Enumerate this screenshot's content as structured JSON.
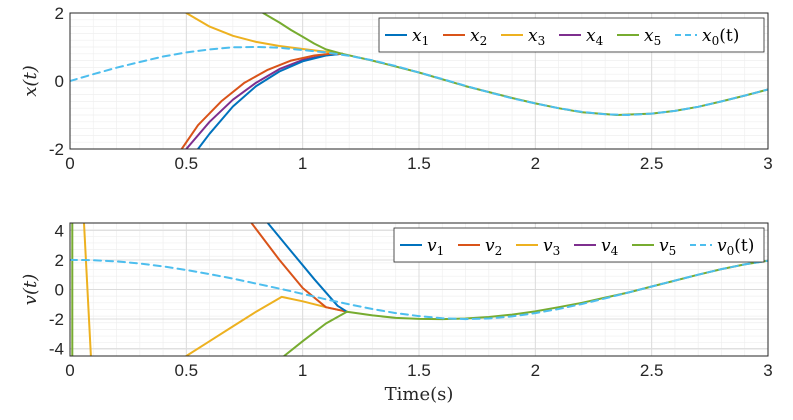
{
  "colors": {
    "s1": "#0072BD",
    "s2": "#D95319",
    "s3": "#EDB120",
    "s4": "#7E2F8E",
    "s5": "#77AC30",
    "ref": "#4DBEEE",
    "grid_major": "#dcdcdc",
    "grid_minor": "#efefef",
    "axis": "#262626"
  },
  "chart_data": [
    {
      "type": "line",
      "title": "",
      "xlabel": "",
      "ylabel": "x(t)",
      "xlim": [
        0,
        3
      ],
      "ylim": [
        -2,
        2
      ],
      "xticks": [
        "0",
        "0.5",
        "1",
        "1.5",
        "2",
        "2.5",
        "3"
      ],
      "yticks": [
        "-2",
        "0",
        "2"
      ],
      "grid": true,
      "legend_position": "top-right",
      "legend": [
        {
          "base": "x",
          "sub": "1",
          "suffix": ""
        },
        {
          "base": "x",
          "sub": "2",
          "suffix": ""
        },
        {
          "base": "x",
          "sub": "3",
          "suffix": ""
        },
        {
          "base": "x",
          "sub": "4",
          "suffix": ""
        },
        {
          "base": "x",
          "sub": "5",
          "suffix": ""
        },
        {
          "base": "x",
          "sub": "0",
          "suffix": "(t)"
        }
      ],
      "series": [
        {
          "color_key": "s4",
          "dash": false,
          "x": [
            0.5,
            0.6,
            0.7,
            0.8,
            0.9,
            1.0,
            1.1,
            1.17
          ],
          "y": [
            -2.0,
            -1.2,
            -0.55,
            -0.05,
            0.35,
            0.62,
            0.76,
            0.8
          ]
        },
        {
          "color_key": "s1",
          "dash": false,
          "x": [
            0.55,
            0.6,
            0.7,
            0.8,
            0.9,
            1.0,
            1.1,
            1.17
          ],
          "y": [
            -2.0,
            -1.55,
            -0.75,
            -0.15,
            0.28,
            0.58,
            0.75,
            0.8
          ]
        },
        {
          "color_key": "s2",
          "dash": false,
          "x": [
            0.48,
            0.55,
            0.65,
            0.75,
            0.85,
            0.95,
            1.05,
            1.12,
            1.17
          ],
          "y": [
            -2.0,
            -1.3,
            -0.6,
            -0.05,
            0.33,
            0.6,
            0.75,
            0.8,
            0.8
          ]
        },
        {
          "color_key": "s3",
          "dash": false,
          "x": [
            0.5,
            0.6,
            0.7,
            0.8,
            0.9,
            1.0,
            1.1,
            1.17
          ],
          "y": [
            2.0,
            1.6,
            1.33,
            1.15,
            1.03,
            0.94,
            0.86,
            0.8
          ]
        },
        {
          "color_key": "s5",
          "dash": false,
          "x": [
            0.83,
            0.9,
            0.95,
            1.0,
            1.05,
            1.1,
            1.17
          ],
          "y": [
            2.0,
            1.72,
            1.5,
            1.3,
            1.1,
            0.93,
            0.8
          ]
        },
        {
          "color_key": "s5",
          "dash": false,
          "x": [
            1.17,
            1.3,
            1.5,
            1.7,
            1.9,
            2.0,
            2.1,
            2.2,
            2.35,
            2.5,
            2.6,
            2.7,
            2.8,
            2.9,
            3.0
          ],
          "y": [
            0.8,
            0.6,
            0.25,
            -0.15,
            -0.5,
            -0.66,
            -0.8,
            -0.92,
            -1.0,
            -0.96,
            -0.88,
            -0.76,
            -0.6,
            -0.43,
            -0.25
          ]
        },
        {
          "color_key": "ref",
          "dash": true,
          "x": [
            0.0,
            0.1,
            0.2,
            0.3,
            0.4,
            0.5,
            0.6,
            0.7,
            0.8,
            0.9,
            1.0,
            1.1,
            1.2,
            1.3,
            1.4,
            1.5,
            1.6,
            1.7,
            1.8,
            1.9,
            2.0,
            2.1,
            2.2,
            2.3,
            2.4,
            2.5,
            2.6,
            2.7,
            2.8,
            2.9,
            3.0
          ],
          "y": [
            0.0,
            0.2,
            0.39,
            0.56,
            0.72,
            0.84,
            0.93,
            0.99,
            1.0,
            0.98,
            0.91,
            0.84,
            0.74,
            0.61,
            0.44,
            0.25,
            0.06,
            -0.14,
            -0.33,
            -0.51,
            -0.66,
            -0.8,
            -0.91,
            -0.98,
            -1.0,
            -0.96,
            -0.88,
            -0.76,
            -0.6,
            -0.43,
            -0.25
          ]
        }
      ]
    },
    {
      "type": "line",
      "title": "",
      "xlabel": "Time(s)",
      "ylabel": "v(t)",
      "xlim": [
        0,
        3
      ],
      "ylim": [
        -4.5,
        4.5
      ],
      "xticks": [
        "0",
        "0.5",
        "1",
        "1.5",
        "2",
        "2.5",
        "3"
      ],
      "yticks": [
        "-4",
        "-2",
        "0",
        "2",
        "4"
      ],
      "grid": true,
      "legend_position": "top-right",
      "legend": [
        {
          "base": "v",
          "sub": "1",
          "suffix": ""
        },
        {
          "base": "v",
          "sub": "2",
          "suffix": ""
        },
        {
          "base": "v",
          "sub": "3",
          "suffix": ""
        },
        {
          "base": "v",
          "sub": "4",
          "suffix": ""
        },
        {
          "base": "v",
          "sub": "5",
          "suffix": ""
        },
        {
          "base": "v",
          "sub": "0",
          "suffix": "(t)"
        }
      ],
      "series": [
        {
          "color_key": "s5",
          "dash": false,
          "x": [
            0.01,
            0.01
          ],
          "y": [
            4.5,
            -4.5
          ]
        },
        {
          "color_key": "s3",
          "dash": false,
          "x": [
            0.06,
            0.09
          ],
          "y": [
            4.5,
            -4.5
          ]
        },
        {
          "color_key": "s3",
          "dash": false,
          "x": [
            0.5,
            0.6,
            0.7,
            0.8,
            0.91,
            1.0,
            1.1,
            1.19
          ],
          "y": [
            -4.5,
            -3.5,
            -2.5,
            -1.5,
            -0.5,
            -0.8,
            -1.2,
            -1.5
          ]
        },
        {
          "color_key": "s2",
          "dash": false,
          "x": [
            0.78,
            0.9,
            1.0,
            1.1,
            1.19
          ],
          "y": [
            4.5,
            2.0,
            0.1,
            -1.2,
            -1.5
          ]
        },
        {
          "color_key": "s1",
          "dash": false,
          "x": [
            0.85,
            0.95,
            1.05,
            1.15,
            1.19
          ],
          "y": [
            4.5,
            2.6,
            0.7,
            -1.1,
            -1.5
          ]
        },
        {
          "color_key": "s5",
          "dash": false,
          "x": [
            0.92,
            1.0,
            1.1,
            1.19
          ],
          "y": [
            -4.5,
            -3.5,
            -2.3,
            -1.5
          ]
        },
        {
          "color_key": "s5",
          "dash": false,
          "x": [
            1.19,
            1.3,
            1.4,
            1.5,
            1.6,
            1.7,
            1.8,
            1.9,
            2.0,
            2.1,
            2.2,
            2.3,
            2.4,
            2.5,
            2.6,
            2.7,
            2.8,
            2.9,
            3.0
          ],
          "y": [
            -1.5,
            -1.75,
            -1.92,
            -1.99,
            -2.0,
            -1.96,
            -1.86,
            -1.7,
            -1.48,
            -1.2,
            -0.9,
            -0.55,
            -0.2,
            0.2,
            0.6,
            1.0,
            1.38,
            1.7,
            1.95
          ]
        },
        {
          "color_key": "ref",
          "dash": true,
          "x": [
            0.0,
            0.1,
            0.2,
            0.3,
            0.4,
            0.5,
            0.6,
            0.7,
            0.8,
            0.9,
            1.0,
            1.1,
            1.2,
            1.3,
            1.4,
            1.5,
            1.6,
            1.7,
            1.8,
            1.9,
            2.0,
            2.1,
            2.2,
            2.3,
            2.4,
            2.5,
            2.6,
            2.7,
            2.8,
            2.9,
            3.0
          ],
          "y": [
            2.0,
            1.98,
            1.9,
            1.76,
            1.56,
            1.32,
            1.04,
            0.74,
            0.4,
            0.06,
            -0.3,
            -0.66,
            -1.0,
            -1.32,
            -1.6,
            -1.8,
            -1.95,
            -2.0,
            -1.96,
            -1.82,
            -1.6,
            -1.32,
            -0.98,
            -0.6,
            -0.2,
            0.2,
            0.6,
            1.0,
            1.38,
            1.7,
            1.95
          ]
        }
      ]
    }
  ]
}
